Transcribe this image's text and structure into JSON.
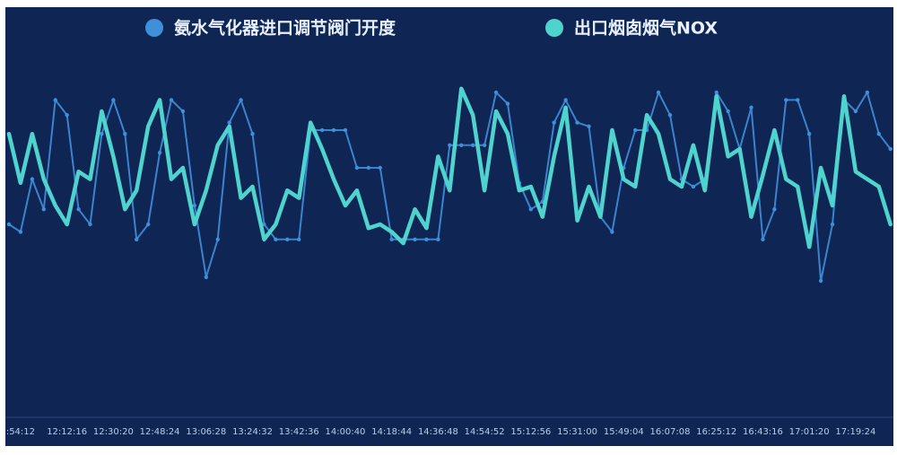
{
  "chart_data": {
    "type": "line",
    "categories": [
      null,
      ":54:12",
      null,
      null,
      null,
      "12:12:16",
      null,
      null,
      null,
      "12:30:20",
      null,
      null,
      null,
      "12:48:24",
      null,
      null,
      null,
      "13:06:28",
      null,
      null,
      null,
      "13:24:32",
      null,
      null,
      null,
      "13:42:36",
      null,
      null,
      null,
      "14:00:40",
      null,
      null,
      null,
      "14:18:44",
      null,
      null,
      null,
      "14:36:48",
      null,
      null,
      null,
      "14:54:52",
      null,
      null,
      null,
      "15:12:56",
      null,
      null,
      null,
      "15:31:00",
      null,
      null,
      null,
      "15:49:04",
      null,
      null,
      null,
      "16:07:08",
      null,
      null,
      null,
      "16:25:12",
      null,
      null,
      null,
      "16:43:16",
      null,
      null,
      null,
      "17:01:20",
      null,
      null,
      null,
      "17:19:24",
      null,
      null,
      null
    ],
    "series": [
      {
        "name": "氨水气化器进口调节阀门开度",
        "color": "#3f8fdb",
        "values": [
          50,
          48,
          62,
          54,
          83,
          79,
          54,
          50,
          74,
          83,
          74,
          46,
          50,
          69,
          83,
          80,
          55,
          36,
          46,
          77,
          83,
          74,
          50,
          46,
          46,
          46,
          75,
          75,
          75,
          75,
          65,
          65,
          65,
          46,
          46,
          46,
          46,
          46,
          71,
          71,
          71,
          71,
          85,
          82,
          61,
          54,
          56,
          77,
          83,
          77,
          76,
          52,
          48,
          65,
          75,
          75,
          85,
          79,
          62,
          60,
          62,
          85,
          80,
          70,
          81,
          46,
          54,
          83,
          83,
          74,
          35,
          50,
          83,
          80,
          85,
          74,
          70
        ]
      },
      {
        "name": "出口烟囱烟气NOX",
        "color": "#4fd3cf",
        "values": [
          74,
          61,
          74,
          62,
          55,
          50,
          64,
          62,
          80,
          68,
          54,
          59,
          76,
          83,
          62,
          65,
          50,
          59,
          71,
          76,
          57,
          60,
          46,
          50,
          59,
          57,
          77,
          70,
          62,
          55,
          59,
          49,
          50,
          48,
          45,
          54,
          49,
          68,
          59,
          86,
          79,
          59,
          80,
          74,
          59,
          60,
          52,
          68,
          81,
          51,
          60,
          52,
          75,
          62,
          60,
          79,
          74,
          62,
          60,
          71,
          59,
          84,
          68,
          70,
          52,
          63,
          75,
          62,
          60,
          44,
          65,
          55,
          84,
          64,
          62,
          60,
          50
        ]
      }
    ],
    "ylim": [
      0,
      100
    ]
  }
}
